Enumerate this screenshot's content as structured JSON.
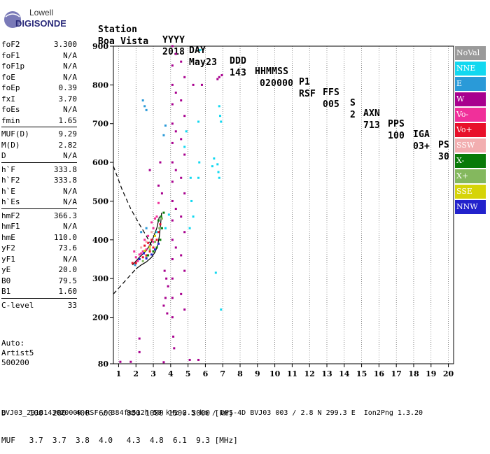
{
  "logo": {
    "line1": "Lowell",
    "line2": "DIGISONDE"
  },
  "header": {
    "labels": [
      "Station",
      "YYYY",
      "DAY",
      "DDD",
      "HHMMSS",
      "P1",
      "FFS",
      "S",
      "AXN",
      "PPS",
      "IGA",
      "PS"
    ],
    "values": [
      "Boa Vista",
      "2018",
      "May23",
      "143",
      "020000",
      "RSF",
      "005",
      "2",
      "713",
      "100",
      "03+",
      "30"
    ]
  },
  "params": [
    {
      "group": [
        {
          "label": "foF2",
          "value": "3.300"
        },
        {
          "label": "foF1",
          "value": "N/A"
        },
        {
          "label": "foF1p",
          "value": "N/A"
        },
        {
          "label": "foE",
          "value": "N/A"
        },
        {
          "label": "foEp",
          "value": "0.39"
        },
        {
          "label": "fxI",
          "value": "3.70"
        },
        {
          "label": "foEs",
          "value": "N/A"
        },
        {
          "label": "fmin",
          "value": "1.65"
        }
      ]
    },
    {
      "group": [
        {
          "label": "MUF(D)",
          "value": "9.29"
        },
        {
          "label": "M(D)",
          "value": "2.82"
        },
        {
          "label": "D",
          "value": "N/A"
        }
      ]
    },
    {
      "group": [
        {
          "label": "h`F",
          "value": "333.8"
        },
        {
          "label": "h`F2",
          "value": "333.8"
        },
        {
          "label": "h`E",
          "value": "N/A"
        },
        {
          "label": "h`Es",
          "value": "N/A"
        }
      ]
    },
    {
      "group": [
        {
          "label": "hmF2",
          "value": "366.3"
        },
        {
          "label": "hmF1",
          "value": "N/A"
        },
        {
          "label": "hmE",
          "value": "110.0"
        },
        {
          "label": "yF2",
          "value": "73.6"
        },
        {
          "label": "yF1",
          "value": "N/A"
        },
        {
          "label": "yE",
          "value": "20.0"
        },
        {
          "label": "B0",
          "value": "79.5"
        },
        {
          "label": "B1",
          "value": "1.60"
        }
      ]
    },
    {
      "group": [
        {
          "label": "C-level",
          "value": "33"
        }
      ]
    }
  ],
  "auto": {
    "line1": "Auto:",
    "line2": "Artist5",
    "line3": "500200"
  },
  "legend": [
    {
      "label": "NoVal",
      "color": "#9a9a9a"
    },
    {
      "label": "NNE",
      "color": "#12d8f0"
    },
    {
      "label": "E",
      "color": "#2a9ad8"
    },
    {
      "label": "W",
      "color": "#a8008e"
    },
    {
      "label": "Vo-",
      "color": "#f0309a"
    },
    {
      "label": "Vo+",
      "color": "#e8102a"
    },
    {
      "label": "SSW",
      "color": "#f2aeb0"
    },
    {
      "label": "X-",
      "color": "#087a08"
    },
    {
      "label": "X+",
      "color": "#84b85e"
    },
    {
      "label": "SSE",
      "color": "#d6d408"
    },
    {
      "label": "NNW",
      "color": "#2222cc"
    }
  ],
  "tables": {
    "d_row": "D     100  200  400  600   800 1000 1500 3000 [km]",
    "muf_row": "MUF   3.7  3.7  3.8  4.0   4.3  4.8  6.1  9.3 [MHz]"
  },
  "footer": {
    "text": "BVJ03_2018143020000.RSF / 384fx512h 50 kHz 2.5 km / DPS-4D BVJ03 003 / 2.8 N 299.3 E  Ion2Png 1.3.20"
  },
  "chart_data": {
    "type": "scatter",
    "xlim": [
      0.7,
      20.3
    ],
    "ylim": [
      80,
      900
    ],
    "xticks": [
      1,
      2,
      3,
      4,
      5,
      6,
      7,
      8,
      9,
      10,
      11,
      12,
      13,
      14,
      15,
      16,
      17,
      18,
      19,
      20
    ],
    "yticks": [
      80,
      200,
      300,
      400,
      500,
      600,
      700,
      800,
      900
    ],
    "grid": "dotted-vertical",
    "series": [
      {
        "name": "NNE",
        "color": "#12d8f0",
        "points": [
          [
            5.7,
            890
          ],
          [
            5.6,
            705
          ],
          [
            5.65,
            600
          ],
          [
            5.6,
            560
          ],
          [
            6.8,
            745
          ],
          [
            6.85,
            720
          ],
          [
            6.9,
            705
          ],
          [
            6.7,
            595
          ],
          [
            6.75,
            575
          ],
          [
            6.8,
            560
          ],
          [
            6.5,
            610
          ],
          [
            6.4,
            590
          ],
          [
            5.2,
            500
          ],
          [
            5.3,
            460
          ],
          [
            5.1,
            430
          ],
          [
            3.9,
            465
          ],
          [
            3.7,
            430
          ],
          [
            6.6,
            315
          ],
          [
            6.9,
            220
          ],
          [
            3.2,
            420
          ],
          [
            4.8,
            640
          ],
          [
            4.9,
            680
          ],
          [
            5.15,
            560
          ]
        ]
      },
      {
        "name": "E",
        "color": "#2a9ad8",
        "points": [
          [
            2.4,
            760
          ],
          [
            2.5,
            745
          ],
          [
            2.6,
            735
          ],
          [
            2.3,
            420
          ],
          [
            2.6,
            430
          ],
          [
            3.6,
            670
          ],
          [
            3.7,
            695
          ],
          [
            1.95,
            335
          ]
        ]
      },
      {
        "name": "W",
        "color": "#a8008e",
        "points": [
          [
            4.1,
            900
          ],
          [
            4.1,
            850
          ],
          [
            4.1,
            800
          ],
          [
            4.1,
            750
          ],
          [
            4.1,
            700
          ],
          [
            4.1,
            650
          ],
          [
            4.1,
            600
          ],
          [
            4.1,
            550
          ],
          [
            4.1,
            500
          ],
          [
            4.1,
            450
          ],
          [
            4.1,
            400
          ],
          [
            4.1,
            350
          ],
          [
            4.1,
            300
          ],
          [
            4.1,
            250
          ],
          [
            4.1,
            200
          ],
          [
            4.15,
            150
          ],
          [
            4.2,
            120
          ],
          [
            4.3,
            880
          ],
          [
            4.3,
            780
          ],
          [
            4.3,
            680
          ],
          [
            4.3,
            580
          ],
          [
            4.3,
            480
          ],
          [
            4.3,
            380
          ],
          [
            4.6,
            860
          ],
          [
            4.6,
            760
          ],
          [
            4.6,
            660
          ],
          [
            4.6,
            560
          ],
          [
            4.6,
            460
          ],
          [
            4.6,
            360
          ],
          [
            4.6,
            260
          ],
          [
            4.8,
            820
          ],
          [
            4.8,
            720
          ],
          [
            4.8,
            620
          ],
          [
            4.8,
            520
          ],
          [
            4.8,
            420
          ],
          [
            4.8,
            320
          ],
          [
            4.8,
            220
          ],
          [
            3.65,
            320
          ],
          [
            3.75,
            300
          ],
          [
            3.85,
            280
          ],
          [
            3.7,
            250
          ],
          [
            3.6,
            230
          ],
          [
            3.8,
            210
          ],
          [
            6.8,
            820
          ],
          [
            6.95,
            825
          ],
          [
            6.7,
            815
          ],
          [
            5.8,
            800
          ],
          [
            5.3,
            800
          ],
          [
            2.2,
            145
          ],
          [
            2.2,
            110
          ],
          [
            1.7,
            85
          ],
          [
            5.1,
            90
          ],
          [
            5.6,
            90
          ],
          [
            3.6,
            84
          ],
          [
            1.1,
            85
          ],
          [
            3.3,
            540
          ],
          [
            3.5,
            520
          ],
          [
            2.8,
            580
          ],
          [
            3.4,
            600
          ]
        ]
      },
      {
        "name": "Vo-",
        "color": "#f0309a",
        "points": [
          [
            1.9,
            370
          ],
          [
            2.0,
            355
          ],
          [
            2.2,
            362
          ],
          [
            2.4,
            370
          ],
          [
            2.6,
            375
          ],
          [
            2.8,
            385
          ],
          [
            3.0,
            395
          ],
          [
            2.5,
            400
          ],
          [
            2.7,
            410
          ],
          [
            3.0,
            430
          ],
          [
            3.2,
            460
          ],
          [
            2.9,
            445
          ],
          [
            3.3,
            495
          ],
          [
            3.1,
            455
          ],
          [
            2.1,
            345
          ],
          [
            2.3,
            365
          ]
        ]
      },
      {
        "name": "Vo+",
        "color": "#e8102a",
        "points": [
          [
            1.8,
            340
          ],
          [
            2.0,
            340
          ],
          [
            2.2,
            350
          ],
          [
            2.4,
            355
          ],
          [
            2.6,
            360
          ],
          [
            2.8,
            370
          ],
          [
            3.0,
            380
          ],
          [
            3.2,
            400
          ],
          [
            3.4,
            440
          ],
          [
            3.3,
            420
          ],
          [
            2.5,
            385
          ],
          [
            2.9,
            400
          ],
          [
            2.7,
            392
          ]
        ]
      },
      {
        "name": "SSW",
        "color": "#f2aeb0",
        "points": [
          [
            2.3,
            380
          ],
          [
            2.6,
            395
          ],
          [
            2.9,
            420
          ]
        ]
      },
      {
        "name": "X-",
        "color": "#087a08",
        "points": [
          [
            2.7,
            360
          ],
          [
            3.0,
            370
          ],
          [
            3.2,
            380
          ],
          [
            3.4,
            400
          ],
          [
            3.5,
            430
          ],
          [
            3.45,
            460
          ],
          [
            3.3,
            450
          ],
          [
            3.6,
            470
          ]
        ]
      },
      {
        "name": "X+",
        "color": "#84b85e",
        "points": [
          [
            2.4,
            345
          ],
          [
            2.6,
            355
          ],
          [
            2.8,
            375
          ],
          [
            3.1,
            395
          ],
          [
            3.35,
            430
          ],
          [
            3.5,
            455
          ]
        ]
      },
      {
        "name": "SSE",
        "color": "#d6d408",
        "points": [
          [
            2.5,
            372
          ],
          [
            2.8,
            382
          ],
          [
            3.1,
            410
          ]
        ]
      },
      {
        "name": "NNW",
        "color": "#2222cc",
        "points": [
          [
            2.2,
            350
          ],
          [
            2.6,
            352
          ],
          [
            2.9,
            362
          ],
          [
            3.1,
            375
          ],
          [
            3.3,
            390
          ],
          [
            2.45,
            365
          ]
        ]
      }
    ],
    "curves": [
      {
        "style": "dashed",
        "points": [
          [
            0.7,
            590
          ],
          [
            1.2,
            530
          ],
          [
            1.7,
            480
          ],
          [
            2.2,
            440
          ],
          [
            2.6,
            410
          ],
          [
            2.9,
            385
          ]
        ]
      },
      {
        "style": "dashed",
        "points": [
          [
            0.7,
            260
          ],
          [
            1.2,
            285
          ],
          [
            1.7,
            310
          ],
          [
            2.0,
            325
          ]
        ]
      },
      {
        "style": "solid",
        "points": [
          [
            2.0,
            325
          ],
          [
            2.3,
            335
          ],
          [
            2.6,
            343
          ],
          [
            2.9,
            355
          ],
          [
            3.1,
            368
          ],
          [
            3.25,
            385
          ],
          [
            3.35,
            410
          ],
          [
            3.42,
            440
          ],
          [
            3.48,
            470
          ]
        ]
      },
      {
        "style": "solid",
        "points": [
          [
            1.8,
            335
          ],
          [
            2.2,
            355
          ],
          [
            2.6,
            372
          ],
          [
            2.9,
            395
          ],
          [
            3.2,
            430
          ],
          [
            3.35,
            460
          ]
        ]
      }
    ]
  }
}
